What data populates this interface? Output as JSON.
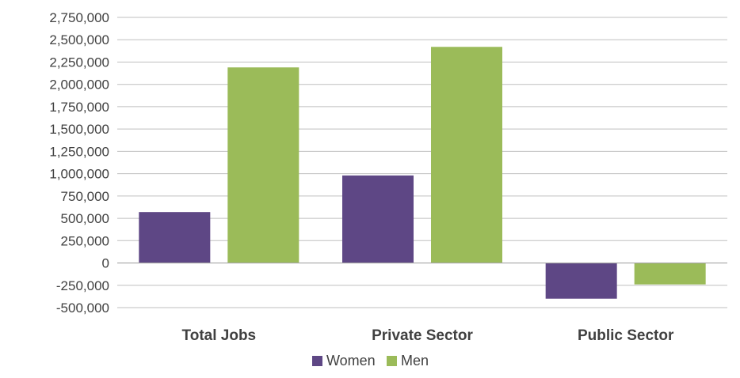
{
  "chart_data": {
    "type": "bar",
    "categories": [
      "Total Jobs",
      "Private Sector",
      "Public Sector"
    ],
    "series": [
      {
        "name": "Women",
        "values": [
          570000,
          980000,
          -400000
        ],
        "color": "#5e4785"
      },
      {
        "name": "Men",
        "values": [
          2190000,
          2420000,
          -240000
        ],
        "color": "#9bbb59"
      }
    ],
    "ylim": [
      -500000,
      2750000
    ],
    "yticks": [
      -500000,
      -250000,
      0,
      250000,
      500000,
      750000,
      1000000,
      1250000,
      1500000,
      1750000,
      2000000,
      2250000,
      2500000,
      2750000
    ],
    "ytick_labels": [
      "-500,000",
      "-250,000",
      "0",
      "250,000",
      "500,000",
      "750,000",
      "1,000,000",
      "1,250,000",
      "1,500,000",
      "1,750,000",
      "2,000,000",
      "2,250,000",
      "2,500,000",
      "2,750,000"
    ],
    "grid": true,
    "legend": "bottom",
    "xlabel": "",
    "ylabel": ""
  }
}
